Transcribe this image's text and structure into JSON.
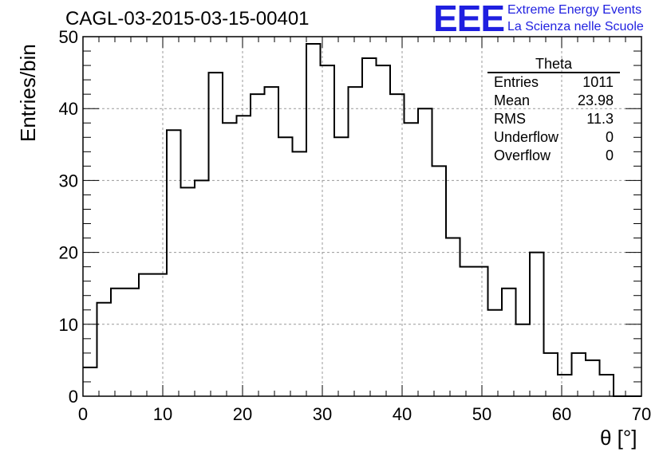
{
  "chart_data": {
    "type": "histogram",
    "title": "CAGL-03-2015-03-15-00401",
    "xlabel": "θ [°]",
    "ylabel": "Entries/bin",
    "xlim": [
      0,
      70
    ],
    "ylim": [
      0,
      50
    ],
    "xticks": [
      "0",
      "10",
      "20",
      "30",
      "40",
      "50",
      "60",
      "70"
    ],
    "yticks": [
      "0",
      "10",
      "20",
      "30",
      "40",
      "50"
    ],
    "grid": true,
    "bin_width": 1.75,
    "bin_start": 0,
    "values": [
      4,
      13,
      15,
      15,
      17,
      17,
      37,
      29,
      30,
      45,
      38,
      39,
      42,
      43,
      36,
      34,
      49,
      46,
      36,
      43,
      47,
      46,
      42,
      38,
      40,
      32,
      22,
      18,
      18,
      12,
      15,
      10,
      20,
      6,
      3,
      6,
      5,
      3,
      0,
      0
    ]
  },
  "stats_box": {
    "title": "Theta",
    "rows": [
      {
        "label": "Entries",
        "value": "1011"
      },
      {
        "label": "Mean",
        "value": "23.98"
      },
      {
        "label": "RMS",
        "value": "11.3"
      },
      {
        "label": "Underflow",
        "value": "0"
      },
      {
        "label": "Overflow",
        "value": "0"
      }
    ]
  },
  "logo": {
    "mark": "EEE",
    "line1": "Extreme Energy Events",
    "line2": "La Scienza nelle Scuole",
    "color": "#1f1fe0"
  }
}
